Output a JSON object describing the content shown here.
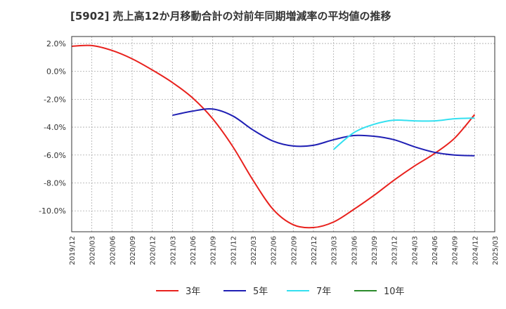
{
  "chart_data": {
    "type": "line",
    "title": "[5902]  売上高12か月移動合計の対前年同期増減率の平均値の推移",
    "xlabel": "",
    "ylabel": "",
    "ylim": [
      -11.5,
      2.5
    ],
    "yticks": [
      2.0,
      0.0,
      -2.0,
      -4.0,
      -6.0,
      -8.0,
      -10.0
    ],
    "ytick_labels": [
      "2.0%",
      "0.0%",
      "-2.0%",
      "-4.0%",
      "-6.0%",
      "-8.0%",
      "-10.0%"
    ],
    "xticks": [
      "2019/12",
      "2020/03",
      "2020/06",
      "2020/09",
      "2020/12",
      "2021/03",
      "2021/06",
      "2021/09",
      "2021/12",
      "2022/03",
      "2022/06",
      "2022/09",
      "2022/12",
      "2023/03",
      "2023/06",
      "2023/09",
      "2023/12",
      "2024/03",
      "2024/06",
      "2024/09",
      "2024/12",
      "2025/03"
    ],
    "grid": true,
    "legend_position": "bottom",
    "series": [
      {
        "name": "3年",
        "color": "#e8211d",
        "x": [
          "2019/12",
          "2020/03",
          "2020/06",
          "2020/09",
          "2020/12",
          "2021/03",
          "2021/06",
          "2021/09",
          "2021/12",
          "2022/03",
          "2022/06",
          "2022/09",
          "2022/12",
          "2023/03",
          "2023/06",
          "2023/09",
          "2023/12",
          "2024/03",
          "2024/06",
          "2024/09",
          "2024/12"
        ],
        "values": [
          1.8,
          1.85,
          1.5,
          0.9,
          0.1,
          -0.8,
          -1.9,
          -3.4,
          -5.4,
          -7.8,
          -9.9,
          -11.0,
          -11.2,
          -10.8,
          -9.9,
          -8.9,
          -7.8,
          -6.8,
          -5.9,
          -4.8,
          -3.1
        ]
      },
      {
        "name": "5年",
        "color": "#1f1fb4",
        "x": [
          "2021/03",
          "2021/06",
          "2021/09",
          "2021/12",
          "2022/03",
          "2022/06",
          "2022/09",
          "2022/12",
          "2023/03",
          "2023/06",
          "2023/09",
          "2023/12",
          "2024/03",
          "2024/06",
          "2024/09",
          "2024/12"
        ],
        "values": [
          -3.15,
          -2.85,
          -2.7,
          -3.2,
          -4.2,
          -5.0,
          -5.35,
          -5.3,
          -4.9,
          -4.6,
          -4.65,
          -4.9,
          -5.4,
          -5.8,
          -6.0,
          -6.05
        ]
      },
      {
        "name": "7年",
        "color": "#33e0f0",
        "x": [
          "2023/03",
          "2023/06",
          "2023/09",
          "2023/12",
          "2024/03",
          "2024/06",
          "2024/09",
          "2024/12"
        ],
        "values": [
          -5.6,
          -4.4,
          -3.8,
          -3.5,
          -3.55,
          -3.55,
          -3.4,
          -3.35
        ]
      },
      {
        "name": "10年",
        "color": "#2a8a2a",
        "x": [],
        "values": []
      }
    ]
  }
}
